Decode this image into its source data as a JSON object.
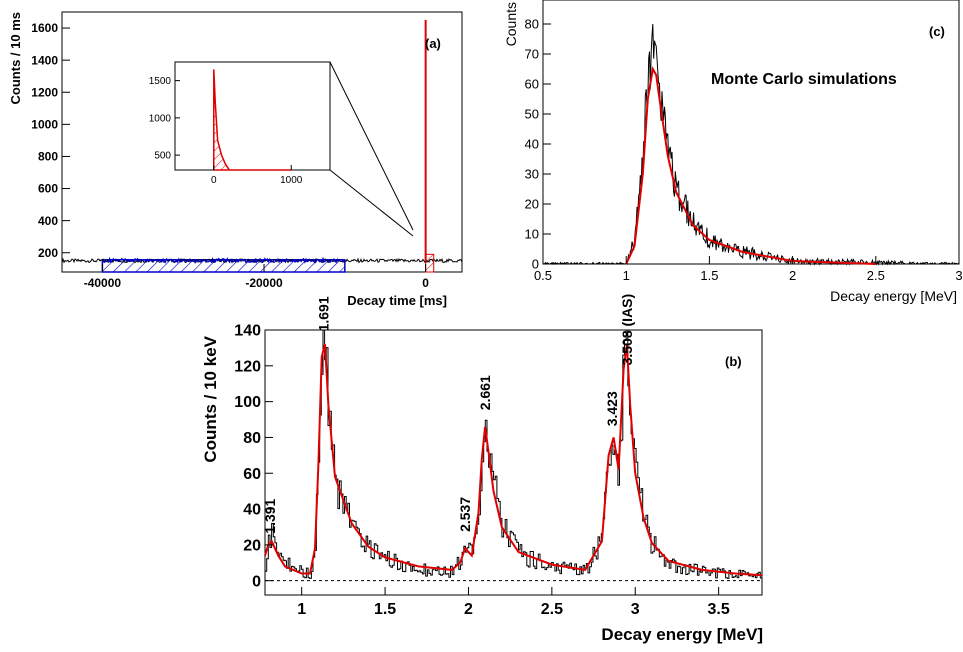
{
  "chart_data": [
    {
      "id": "a",
      "type": "line",
      "panel_label": "(a)",
      "title": "",
      "xlabel": "Decay time [ms]",
      "ylabel": "Counts / 10 ms",
      "xlim": [
        -45000,
        4500
      ],
      "ylim": [
        80,
        1700
      ],
      "xticks": [
        -40000,
        -20000,
        0
      ],
      "yticks": [
        200,
        400,
        600,
        800,
        1000,
        1200,
        1400,
        1600
      ],
      "background_level": 150,
      "series": [
        {
          "role": "background",
          "color": "#000000",
          "x": [
            -45000,
            -40000,
            -30000,
            -20000,
            -10000,
            0,
            4500
          ],
          "y": [
            148,
            150,
            152,
            151,
            150,
            149,
            148
          ]
        },
        {
          "role": "background-window",
          "color": "#0000cc",
          "x": [
            -40000,
            -30000,
            -20000,
            -10000
          ],
          "y": [
            150,
            152,
            151,
            150
          ]
        },
        {
          "role": "decay-peak",
          "color": "#e00000",
          "x": [
            0,
            100,
            200,
            300,
            500,
            1000
          ],
          "y": [
            1650,
            600,
            300,
            220,
            170,
            150
          ]
        }
      ],
      "inset": {
        "xticks": [
          0,
          1000
        ],
        "yticks": [
          500,
          1000,
          1500
        ],
        "xlim": [
          -500,
          1500
        ],
        "ylim": [
          300,
          1750
        ],
        "series": [
          {
            "role": "background",
            "color": "#000000",
            "x": [
              -500,
              -250,
              0,
              1000,
              1500
            ],
            "y": [
              150,
              150,
              150,
              150,
              150
            ]
          },
          {
            "role": "decay",
            "color": "#e00000",
            "x": [
              0,
              20,
              50,
              100,
              150,
              200,
              300,
              400,
              500,
              700,
              1000
            ],
            "y": [
              1650,
              1200,
              700,
              500,
              380,
              300,
              230,
              200,
              185,
              165,
              155
            ]
          }
        ]
      }
    },
    {
      "id": "c",
      "type": "line",
      "panel_label": "(c)",
      "title": "",
      "annotation": "Monte Carlo simulations",
      "xlabel": "Decay energy [MeV]",
      "ylabel": "Counts",
      "xlim": [
        0.5,
        3
      ],
      "ylim": [
        0,
        88
      ],
      "xticks": [
        0.5,
        1,
        1.5,
        2,
        2.5,
        3
      ],
      "yticks": [
        0,
        10,
        20,
        30,
        40,
        50,
        60,
        70,
        80
      ],
      "series": [
        {
          "name": "",
          "role": "histogram",
          "color": "#000000",
          "x": [
            0.5,
            1.0,
            1.05,
            1.1,
            1.13,
            1.16,
            1.18,
            1.2,
            1.25,
            1.3,
            1.4,
            1.5,
            1.7,
            2.0,
            2.5,
            3.0
          ],
          "y": [
            0,
            0,
            8,
            35,
            62,
            72,
            68,
            58,
            38,
            25,
            14,
            8,
            4,
            1,
            0.5,
            0
          ]
        },
        {
          "name": "",
          "role": "fit",
          "color": "#e00000",
          "x": [
            1.0,
            1.05,
            1.1,
            1.13,
            1.16,
            1.18,
            1.2,
            1.25,
            1.3,
            1.4,
            1.5,
            1.7,
            2.0,
            2.5
          ],
          "y": [
            0,
            6,
            30,
            55,
            65,
            63,
            55,
            36,
            24,
            13,
            8,
            4,
            1,
            0
          ]
        }
      ]
    },
    {
      "id": "b",
      "type": "line",
      "panel_label": "(b)",
      "title": "",
      "xlabel": "Decay energy [MeV]",
      "ylabel": "Counts / 10 keV",
      "xlim": [
        0.78,
        3.76
      ],
      "ylim": [
        -8,
        140
      ],
      "xticks": [
        1,
        1.5,
        2,
        2.5,
        3,
        3.5
      ],
      "yticks": [
        0,
        20,
        40,
        60,
        80,
        100,
        120,
        140
      ],
      "peak_labels": [
        {
          "text": "1.391",
          "x": 0.81,
          "y": 24
        },
        {
          "text": "1.691",
          "x": 1.13,
          "y": 137
        },
        {
          "text": "2.537",
          "x": 1.98,
          "y": 25
        },
        {
          "text": "2.661",
          "x": 2.1,
          "y": 93
        },
        {
          "text": "3.423",
          "x": 2.86,
          "y": 84
        },
        {
          "text": "3.508 (IAS)",
          "x": 2.95,
          "y": 118
        }
      ],
      "series": [
        {
          "name": "",
          "role": "histogram",
          "color": "#000000",
          "x": [
            0.78,
            0.8,
            0.82,
            0.84,
            0.9,
            1.0,
            1.05,
            1.08,
            1.1,
            1.12,
            1.14,
            1.16,
            1.2,
            1.3,
            1.4,
            1.5,
            1.7,
            1.9,
            1.95,
            1.98,
            2.02,
            2.06,
            2.08,
            2.1,
            2.12,
            2.15,
            2.2,
            2.3,
            2.5,
            2.7,
            2.8,
            2.84,
            2.87,
            2.9,
            2.93,
            2.95,
            2.97,
            3.0,
            3.05,
            3.1,
            3.2,
            3.4,
            3.6,
            3.76
          ],
          "y": [
            10,
            22,
            28,
            15,
            10,
            5,
            4,
            20,
            70,
            128,
            135,
            95,
            55,
            30,
            18,
            12,
            6,
            5,
            12,
            22,
            15,
            40,
            70,
            90,
            75,
            55,
            30,
            15,
            8,
            5,
            25,
            75,
            82,
            60,
            120,
            135,
            100,
            60,
            35,
            20,
            10,
            5,
            3,
            2
          ]
        },
        {
          "name": "",
          "role": "fit",
          "color": "#e00000",
          "x": [
            0.78,
            0.8,
            0.82,
            0.86,
            0.9,
            1.0,
            1.05,
            1.08,
            1.1,
            1.12,
            1.14,
            1.16,
            1.2,
            1.3,
            1.4,
            1.5,
            1.7,
            1.9,
            1.95,
            1.98,
            2.02,
            2.06,
            2.08,
            2.1,
            2.12,
            2.15,
            2.2,
            2.3,
            2.5,
            2.7,
            2.8,
            2.84,
            2.87,
            2.9,
            2.93,
            2.95,
            2.97,
            3.0,
            3.05,
            3.1,
            3.2,
            3.4,
            3.6,
            3.76
          ],
          "y": [
            14,
            20,
            22,
            14,
            8,
            4,
            4,
            18,
            65,
            125,
            132,
            98,
            58,
            32,
            19,
            13,
            8,
            6,
            10,
            18,
            14,
            38,
            68,
            86,
            72,
            50,
            30,
            16,
            9,
            6,
            22,
            70,
            80,
            62,
            118,
            132,
            98,
            60,
            35,
            21,
            11,
            6,
            4,
            3
          ]
        }
      ],
      "zero_line": 0
    }
  ]
}
